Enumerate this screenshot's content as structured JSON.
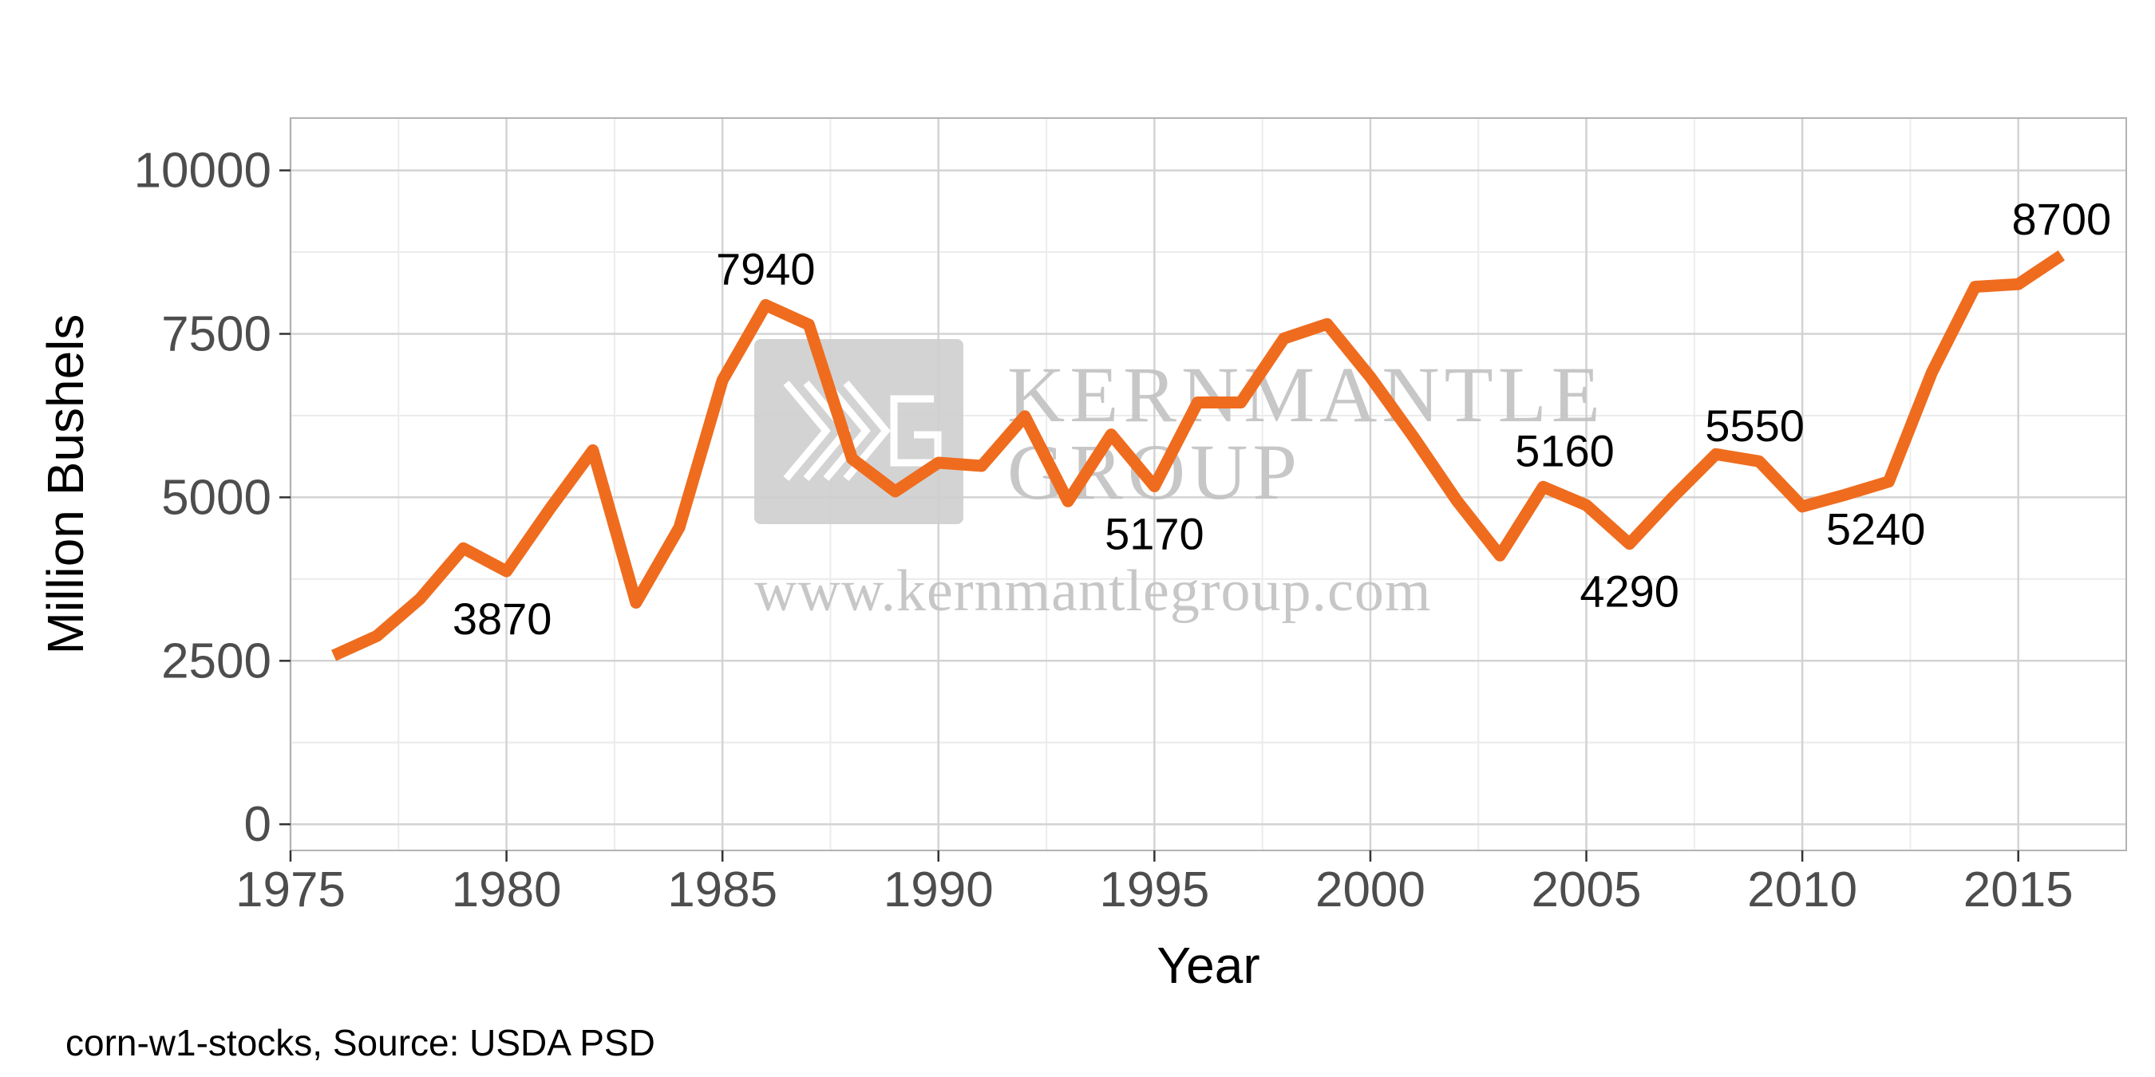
{
  "caption": "corn-w1-stocks, Source: USDA PSD",
  "watermark": {
    "name_line1": "KERNMANTLE",
    "name_line2": "GROUP",
    "url": "www.kernmantlegroup.com"
  },
  "colors": {
    "line": "#ef6c1e",
    "grid_major": "#d3d3d3",
    "grid_minor": "#ececec",
    "panel_border": "#b3b3b3"
  },
  "chart_data": {
    "type": "line",
    "title": "",
    "xlabel": "Year",
    "ylabel": "Million Bushels",
    "xlim": [
      1975,
      2017.5
    ],
    "ylim": [
      -400,
      10800
    ],
    "x_ticks": [
      1975,
      1980,
      1985,
      1990,
      1995,
      2000,
      2005,
      2010,
      2015
    ],
    "y_ticks": [
      0,
      2500,
      5000,
      7500,
      10000
    ],
    "grid": true,
    "legend": "none",
    "series": [
      {
        "x": [
          1976,
          1977,
          1978,
          1979,
          1980,
          1981,
          1982,
          1983,
          1984,
          1985,
          1986,
          1987,
          1988,
          1989,
          1990,
          1991,
          1992,
          1993,
          1994,
          1995,
          1996,
          1997,
          1998,
          1999,
          2000,
          2001,
          2002,
          2003,
          2004,
          2005,
          2006,
          2007,
          2008,
          2009,
          2010,
          2011,
          2012,
          2013,
          2014,
          2015,
          2016
        ],
        "values": [
          2580,
          2880,
          3450,
          4220,
          3870,
          4820,
          5720,
          3390,
          4540,
          6790,
          7940,
          7640,
          5590,
          5090,
          5530,
          5480,
          6240,
          4940,
          5960,
          5170,
          6450,
          6450,
          7430,
          7650,
          6840,
          5920,
          4950,
          4110,
          5160,
          4880,
          4290,
          5000,
          5660,
          5550,
          4860,
          5040,
          5240,
          6910,
          8220,
          8260,
          8700
        ]
      }
    ],
    "annotations": [
      {
        "x": 1979.9,
        "y": 3150,
        "text": "3870"
      },
      {
        "x": 1986.0,
        "y": 8500,
        "text": "7940"
      },
      {
        "x": 1995.0,
        "y": 4450,
        "text": "5170"
      },
      {
        "x": 2004.5,
        "y": 5720,
        "text": "5160"
      },
      {
        "x": 2006.0,
        "y": 3570,
        "text": "4290"
      },
      {
        "x": 2008.9,
        "y": 6100,
        "text": "5550"
      },
      {
        "x": 2011.7,
        "y": 4520,
        "text": "5240"
      },
      {
        "x": 2016.0,
        "y": 9260,
        "text": "8700"
      }
    ]
  }
}
